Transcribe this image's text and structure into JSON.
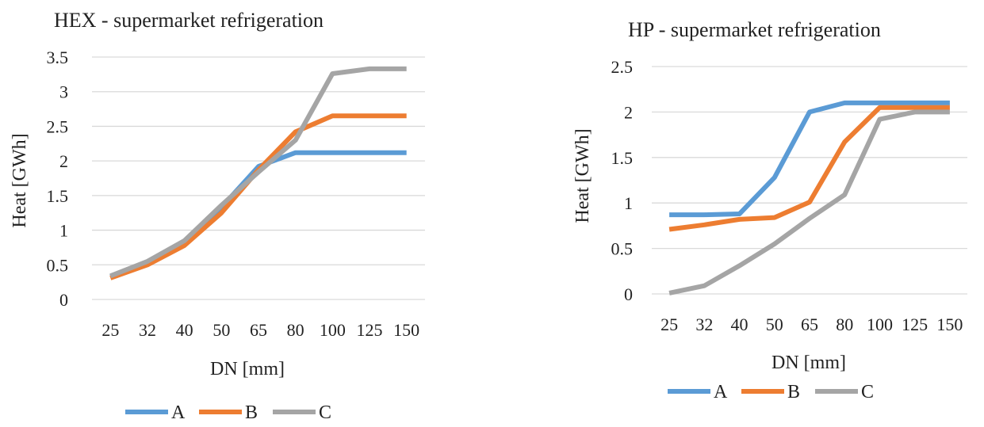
{
  "chart_data": [
    {
      "type": "line",
      "title": "HEX - supermarket refrigeration",
      "xlabel": "DN [mm]",
      "ylabel": "Heat [GWh]",
      "categories": [
        "25",
        "32",
        "40",
        "50",
        "65",
        "80",
        "100",
        "125",
        "150"
      ],
      "ylim": [
        0,
        3.5
      ],
      "ytick_labels": [
        "0",
        "0.5",
        "1",
        "1.5",
        "2",
        "2.5",
        "3",
        "3.5"
      ],
      "grid": true,
      "legend_position": "bottom",
      "series": [
        {
          "name": "A",
          "color": "#5B9BD5",
          "values": [
            0.33,
            0.53,
            0.83,
            1.33,
            1.92,
            2.12,
            2.12,
            2.12,
            2.12
          ]
        },
        {
          "name": "B",
          "color": "#ED7D31",
          "values": [
            0.31,
            0.5,
            0.78,
            1.25,
            1.87,
            2.42,
            2.65,
            2.65,
            2.65
          ]
        },
        {
          "name": "C",
          "color": "#A5A5A5",
          "values": [
            0.34,
            0.55,
            0.85,
            1.36,
            1.84,
            2.3,
            3.26,
            3.33,
            3.33
          ]
        }
      ]
    },
    {
      "type": "line",
      "title": "HP - supermarket refrigeration",
      "xlabel": "DN [mm]",
      "ylabel": "Heat [GWh]",
      "categories": [
        "25",
        "32",
        "40",
        "50",
        "65",
        "80",
        "100",
        "125",
        "150"
      ],
      "ylim": [
        0,
        2.5
      ],
      "ytick_labels": [
        "0",
        "0.5",
        "1",
        "1.5",
        "2",
        "2.5"
      ],
      "grid": true,
      "legend_position": "bottom",
      "series": [
        {
          "name": "A",
          "color": "#5B9BD5",
          "values": [
            0.87,
            0.87,
            0.88,
            1.28,
            2.0,
            2.1,
            2.1,
            2.1,
            2.1
          ]
        },
        {
          "name": "B",
          "color": "#ED7D31",
          "values": [
            0.71,
            0.76,
            0.82,
            0.84,
            1.01,
            1.67,
            2.05,
            2.05,
            2.05
          ]
        },
        {
          "name": "C",
          "color": "#A5A5A5",
          "values": [
            0.01,
            0.09,
            0.31,
            0.55,
            0.83,
            1.09,
            1.92,
            2.0,
            2.0
          ]
        }
      ]
    }
  ]
}
